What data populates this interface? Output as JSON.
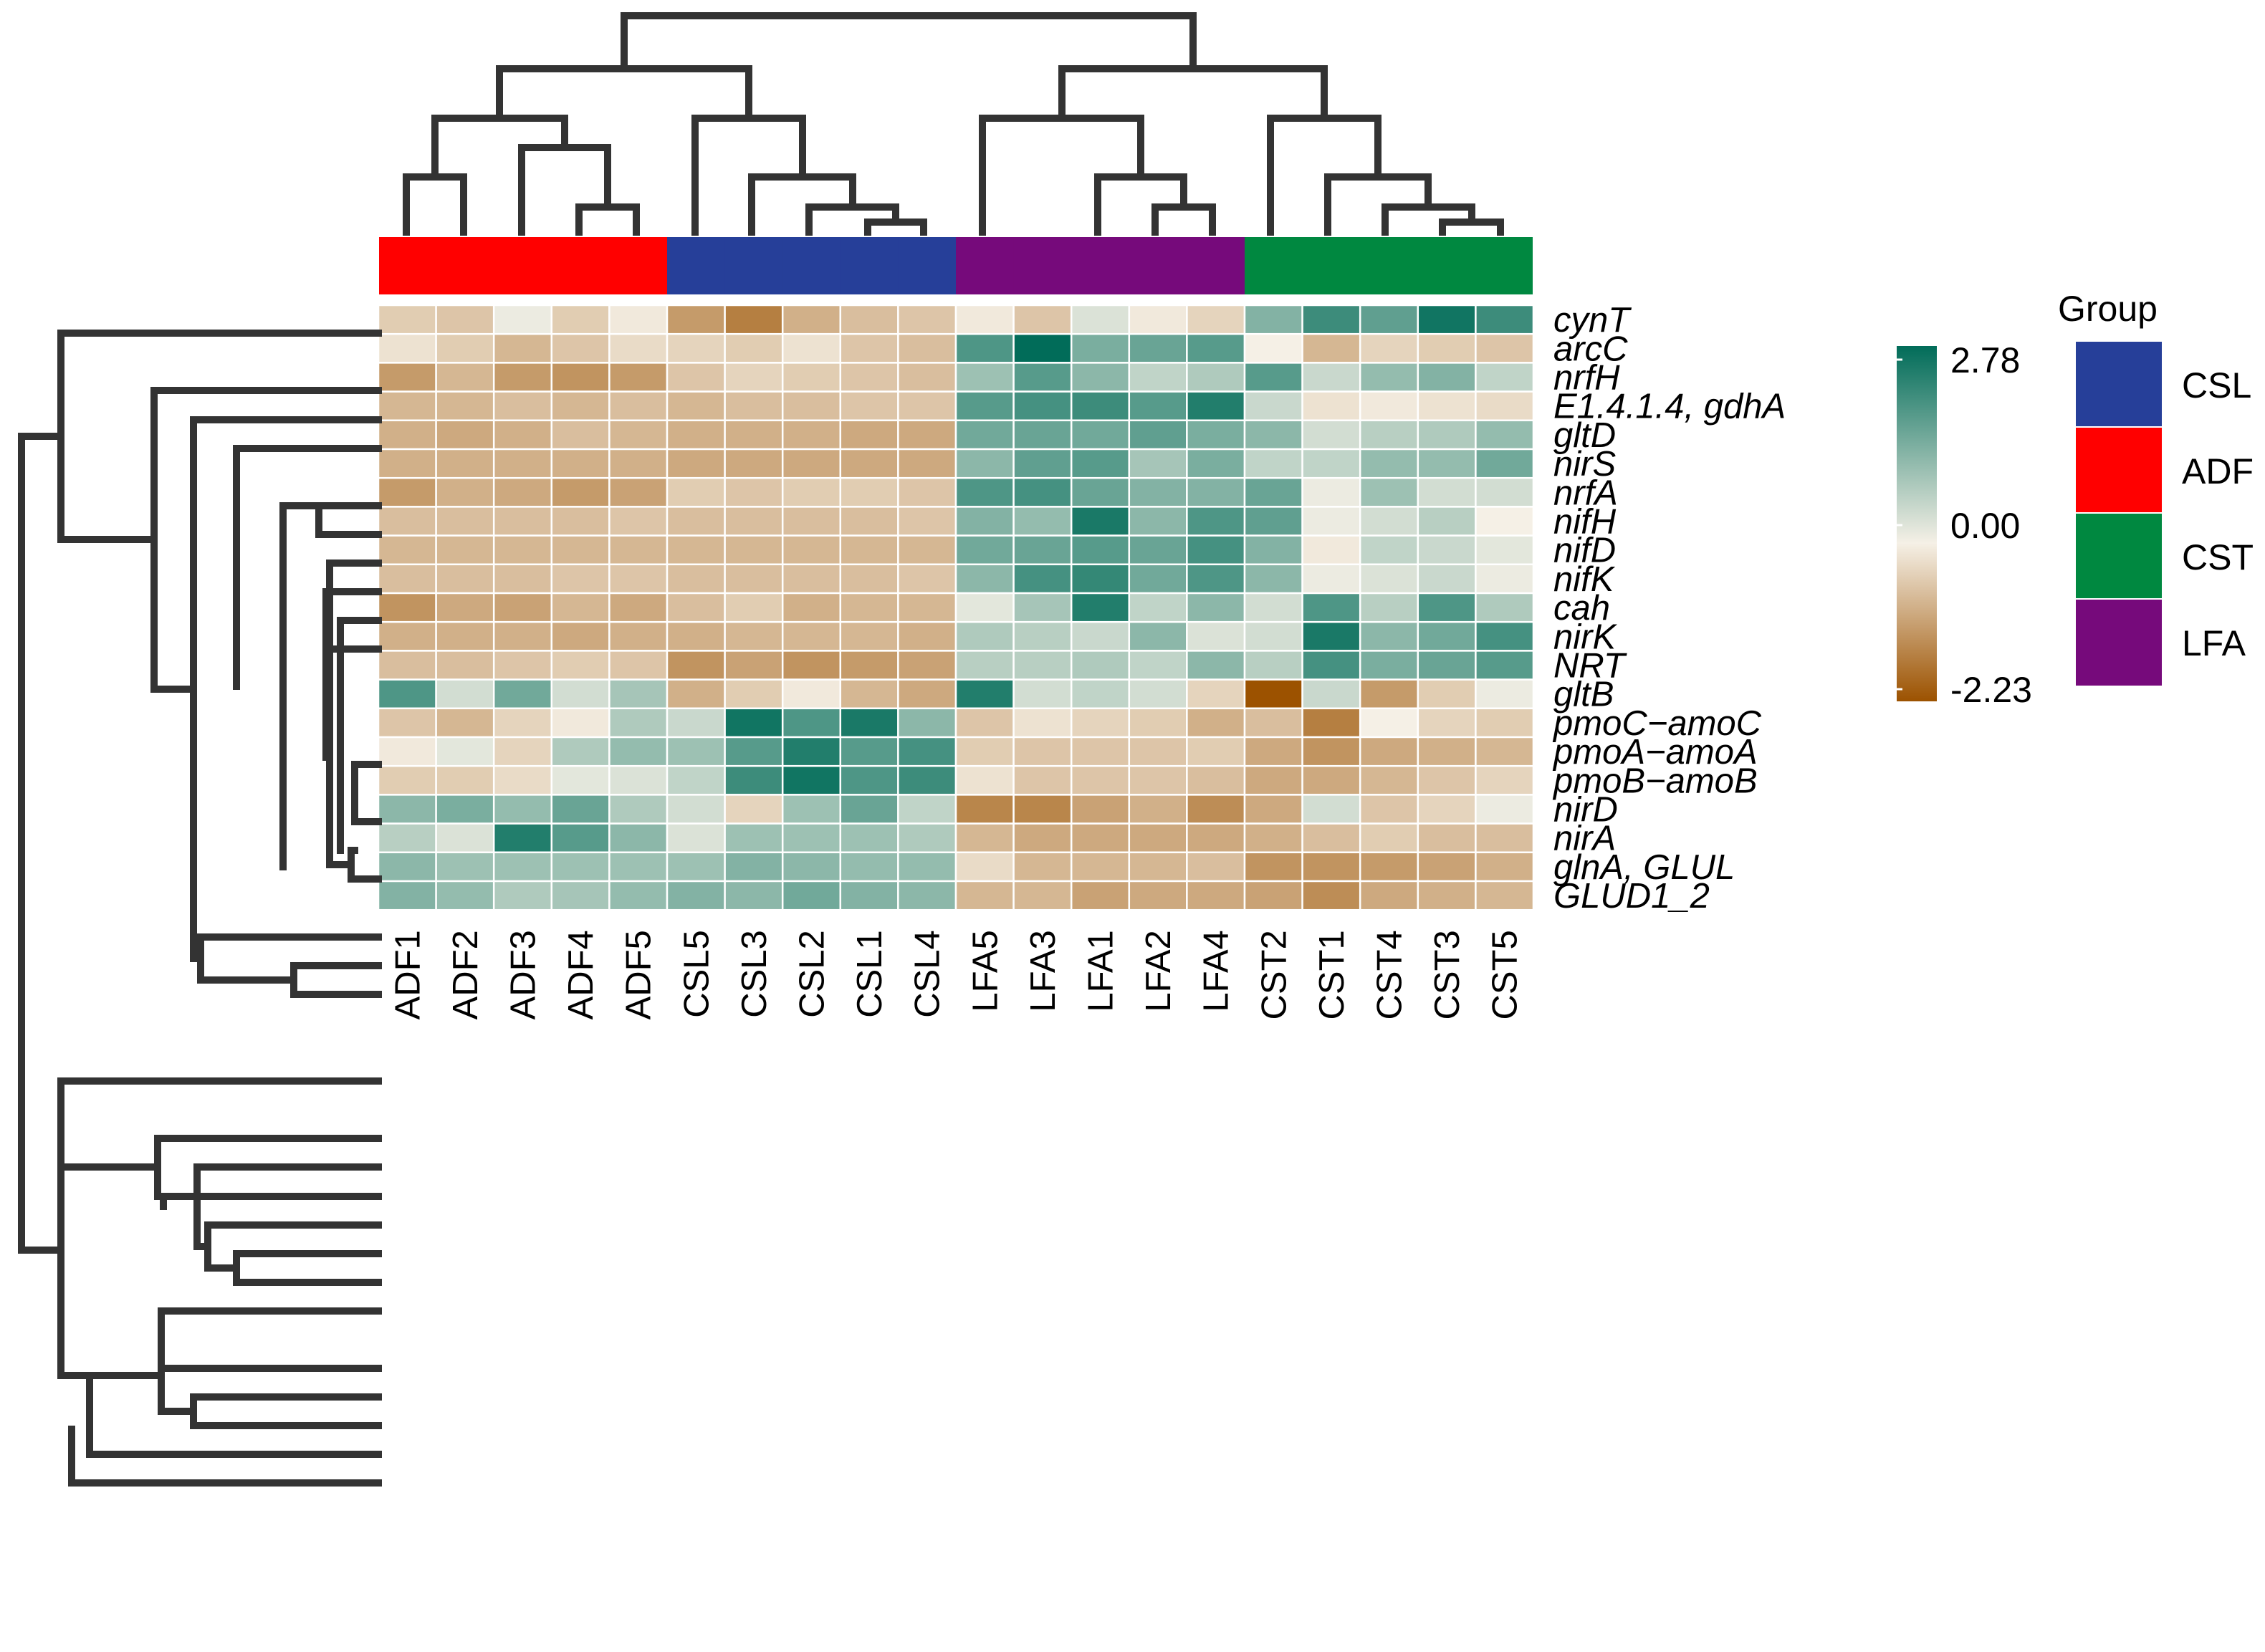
{
  "chart_data": {
    "type": "heatmap",
    "columns": [
      "ADF1",
      "ADF2",
      "ADF3",
      "ADF4",
      "ADF5",
      "CSL5",
      "CSL3",
      "CSL2",
      "CSL1",
      "CSL4",
      "LFA5",
      "LFA3",
      "LFA1",
      "LFA2",
      "LFA4",
      "CST2",
      "CST1",
      "CST4",
      "CST3",
      "CST5"
    ],
    "column_groups": [
      "ADF",
      "ADF",
      "ADF",
      "ADF",
      "ADF",
      "CSL",
      "CSL",
      "CSL",
      "CSL",
      "CSL",
      "LFA",
      "LFA",
      "LFA",
      "LFA",
      "LFA",
      "CST",
      "CST",
      "CST",
      "CST",
      "CST"
    ],
    "rows": [
      "cynT",
      "arcC",
      "nrfH",
      "E1.4.1.4, gdhA",
      "gltD",
      "nirS",
      "nrfA",
      "nifH",
      "nifD",
      "nifK",
      "cah",
      "nirK",
      "NRT",
      "gltB",
      "pmoC−amoC",
      "pmoA−amoA",
      "pmoB−amoB",
      "nirD",
      "nirA",
      "glnA, GLUL",
      "GLUD1_2"
    ],
    "values": [
      [
        -0.5,
        -0.6,
        0.1,
        -0.5,
        -0.1,
        -1.2,
        -1.6,
        -0.9,
        -0.7,
        -0.6,
        -0.1,
        -0.6,
        0.3,
        -0.1,
        -0.4,
        1.3,
        2.1,
        1.7,
        2.6,
        2.1
      ],
      [
        -0.2,
        -0.5,
        -0.8,
        -0.6,
        -0.3,
        -0.4,
        -0.5,
        -0.2,
        -0.6,
        -0.7,
        1.9,
        2.78,
        1.4,
        1.6,
        1.8,
        0.0,
        -0.8,
        -0.4,
        -0.5,
        -0.6
      ],
      [
        -1.2,
        -0.8,
        -1.2,
        -1.3,
        -1.2,
        -0.6,
        -0.4,
        -0.5,
        -0.6,
        -0.7,
        1.0,
        1.8,
        1.2,
        0.6,
        0.8,
        1.8,
        0.5,
        1.1,
        1.3,
        0.6
      ],
      [
        -0.8,
        -0.8,
        -0.7,
        -0.8,
        -0.7,
        -0.8,
        -0.7,
        -0.7,
        -0.6,
        -0.6,
        1.8,
        2.0,
        2.1,
        1.8,
        2.4,
        0.5,
        -0.2,
        -0.1,
        -0.2,
        -0.3
      ],
      [
        -0.9,
        -1.0,
        -0.9,
        -0.7,
        -0.8,
        -0.9,
        -0.9,
        -0.9,
        -1.0,
        -1.0,
        1.5,
        1.6,
        1.5,
        1.7,
        1.4,
        1.2,
        0.4,
        0.7,
        0.8,
        1.1
      ],
      [
        -0.9,
        -0.9,
        -0.9,
        -0.9,
        -0.9,
        -1.0,
        -1.0,
        -1.0,
        -1.0,
        -1.0,
        1.2,
        1.7,
        1.8,
        0.9,
        1.4,
        0.6,
        0.6,
        1.1,
        1.1,
        1.5
      ],
      [
        -1.2,
        -0.9,
        -1.0,
        -1.2,
        -1.1,
        -0.5,
        -0.6,
        -0.5,
        -0.5,
        -0.6,
        1.9,
        2.0,
        1.6,
        1.3,
        1.3,
        1.6,
        0.1,
        1.0,
        0.4,
        0.4
      ],
      [
        -0.7,
        -0.7,
        -0.7,
        -0.7,
        -0.6,
        -0.7,
        -0.7,
        -0.7,
        -0.7,
        -0.6,
        1.3,
        1.1,
        2.5,
        1.2,
        1.9,
        1.7,
        0.1,
        0.4,
        0.7,
        0.0
      ],
      [
        -0.8,
        -0.8,
        -0.8,
        -0.8,
        -0.8,
        -0.8,
        -0.8,
        -0.8,
        -0.8,
        -0.8,
        1.5,
        1.6,
        1.8,
        1.6,
        2.0,
        1.3,
        -0.1,
        0.6,
        0.5,
        0.2
      ],
      [
        -0.7,
        -0.7,
        -0.7,
        -0.6,
        -0.6,
        -0.7,
        -0.7,
        -0.7,
        -0.7,
        -0.6,
        1.2,
        2.0,
        2.2,
        1.5,
        1.9,
        1.2,
        0.1,
        0.3,
        0.5,
        0.1
      ],
      [
        -1.3,
        -1.0,
        -1.1,
        -0.8,
        -1.0,
        -0.7,
        -0.5,
        -0.9,
        -0.8,
        -0.8,
        0.2,
        0.9,
        2.4,
        0.6,
        1.2,
        0.4,
        1.9,
        0.7,
        1.9,
        0.8
      ],
      [
        -0.9,
        -0.9,
        -0.9,
        -1.0,
        -0.9,
        -0.9,
        -0.8,
        -0.8,
        -0.8,
        -0.9,
        0.8,
        0.7,
        0.5,
        1.2,
        0.3,
        0.4,
        2.5,
        1.2,
        1.5,
        2.0
      ],
      [
        -0.7,
        -0.7,
        -0.6,
        -0.5,
        -0.6,
        -1.3,
        -1.1,
        -1.3,
        -1.2,
        -1.1,
        0.7,
        0.7,
        0.8,
        0.6,
        1.2,
        0.7,
        2.0,
        1.4,
        1.6,
        1.8
      ],
      [
        1.9,
        0.4,
        1.5,
        0.4,
        0.9,
        -0.9,
        -0.5,
        -0.1,
        -0.8,
        -1.0,
        2.4,
        0.4,
        0.6,
        0.4,
        -0.4,
        -2.23,
        0.5,
        -1.2,
        -0.5,
        0.1
      ],
      [
        -0.6,
        -0.8,
        -0.4,
        -0.1,
        0.8,
        0.5,
        2.6,
        1.9,
        2.5,
        1.2,
        -0.6,
        -0.2,
        -0.4,
        -0.5,
        -0.9,
        -0.7,
        -1.6,
        0.0,
        -0.4,
        -0.5
      ],
      [
        -0.1,
        0.2,
        -0.4,
        0.8,
        1.1,
        1.0,
        1.8,
        2.4,
        1.8,
        2.0,
        -0.5,
        -0.6,
        -0.6,
        -0.6,
        -0.5,
        -1.0,
        -1.3,
        -1.0,
        -0.9,
        -0.8
      ],
      [
        -0.5,
        -0.5,
        -0.3,
        0.2,
        0.3,
        0.6,
        2.1,
        2.6,
        1.9,
        2.1,
        -0.2,
        -0.6,
        -0.6,
        -0.6,
        -0.7,
        -1.0,
        -1.0,
        -0.8,
        -0.6,
        -0.4
      ],
      [
        1.2,
        1.4,
        1.1,
        1.6,
        0.8,
        0.4,
        -0.4,
        1.0,
        1.6,
        0.6,
        -1.5,
        -1.5,
        -1.1,
        -0.9,
        -1.4,
        -1.0,
        0.4,
        -0.6,
        -0.4,
        0.1
      ],
      [
        0.7,
        0.3,
        2.4,
        1.8,
        1.2,
        0.3,
        1.0,
        1.0,
        1.0,
        0.8,
        -0.8,
        -1.0,
        -1.0,
        -1.0,
        -1.0,
        -0.9,
        -0.7,
        -0.5,
        -0.7,
        -0.7
      ],
      [
        1.2,
        1.0,
        1.0,
        1.0,
        1.0,
        1.0,
        1.3,
        1.2,
        1.1,
        1.1,
        -0.3,
        -0.8,
        -0.8,
        -0.8,
        -0.7,
        -1.3,
        -1.3,
        -1.2,
        -1.1,
        -0.9
      ],
      [
        1.3,
        1.1,
        0.8,
        0.9,
        1.1,
        1.3,
        1.2,
        1.5,
        1.3,
        1.2,
        -0.8,
        -0.8,
        -1.1,
        -1.0,
        -1.0,
        -1.1,
        -1.4,
        -1.0,
        -0.9,
        -0.8
      ]
    ],
    "color_scale": {
      "min": -2.23,
      "mid": 0.0,
      "max": 2.78,
      "min_color": "#9c5200",
      "mid_color": "#f5f0e6",
      "max_color": "#016c59",
      "tick_labels": [
        "2.78",
        "0.00",
        "-2.23"
      ]
    },
    "group_legend": {
      "title": "Group",
      "entries": [
        {
          "name": "CSL",
          "color": "#263f99"
        },
        {
          "name": "ADF",
          "color": "#ff0000"
        },
        {
          "name": "CST",
          "color": "#008840"
        },
        {
          "name": "LFA",
          "color": "#760a7b"
        }
      ]
    },
    "grid": false,
    "dendrograms": [
      "rows-left",
      "columns-top"
    ]
  }
}
